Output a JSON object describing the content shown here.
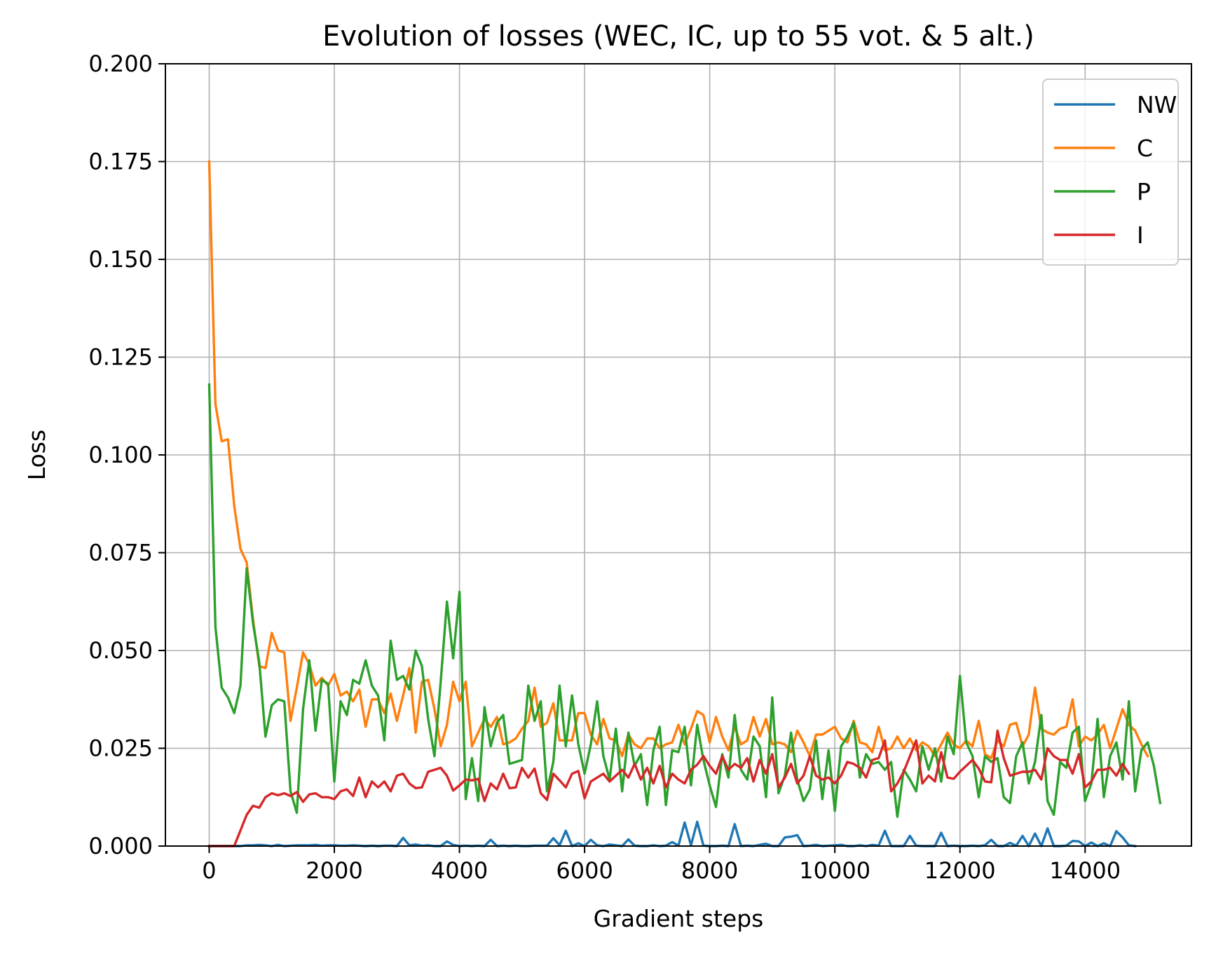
{
  "chart_data": {
    "type": "line",
    "title": "Evolution of losses (WEC, IC, up to 55 vot. & 5 alt.)",
    "xlabel": "Gradient steps",
    "ylabel": "Loss",
    "xlim": [
      -700,
      15700
    ],
    "ylim": [
      0,
      0.2
    ],
    "xticks": [
      0,
      2000,
      4000,
      6000,
      8000,
      10000,
      12000,
      14000
    ],
    "xtick_labels": [
      "0",
      "2000",
      "4000",
      "6000",
      "8000",
      "10000",
      "12000",
      "14000"
    ],
    "yticks": [
      0,
      0.025,
      0.05,
      0.075,
      0.1,
      0.125,
      0.15,
      0.175,
      0.2
    ],
    "ytick_labels": [
      "0.000",
      "0.025",
      "0.050",
      "0.075",
      "0.100",
      "0.125",
      "0.150",
      "0.175",
      "0.200"
    ],
    "grid": true,
    "legend_position": "top-right",
    "x_start": 0,
    "x_step": 100,
    "series": [
      {
        "name": "NW",
        "color": "#1f77b4",
        "values": [
          0.0,
          0.0,
          0.0,
          0.0,
          0.0,
          0.0,
          0.0002,
          0.0002,
          0.0003,
          0.0002,
          0.0,
          0.0003,
          0.0,
          0.0001,
          0.0002,
          0.0002,
          0.0002,
          0.0003,
          0.0001,
          0.0002,
          0.0002,
          0.0001,
          0.0001,
          0.0002,
          0.0001,
          0.0,
          0.0001,
          0.0,
          0.0001,
          0.0001,
          0.0,
          0.0021,
          0.0002,
          0.0004,
          0.0001,
          0.0002,
          0.0,
          0.0,
          0.0012,
          0.0003,
          0.0,
          0.0001,
          0.0,
          0.0001,
          0.0,
          0.0016,
          0.0,
          0.0001,
          0.0,
          0.0001,
          0.0,
          0.0,
          0.0001,
          0.0001,
          0.0001,
          0.002,
          0.0002,
          0.0039,
          0.0,
          0.0007,
          0.0,
          0.0016,
          0.0002,
          0.0,
          0.0004,
          0.0002,
          0.0,
          0.0017,
          0.0001,
          0.0,
          0.0,
          0.0002,
          0.0,
          0.0001,
          0.001,
          0.0001,
          0.006,
          0.0002,
          0.0062,
          0.0001,
          0.0,
          0.0,
          0.0001,
          0.0,
          0.0056,
          0.0,
          0.0001,
          0.0,
          0.0003,
          0.0006,
          0.0,
          0.0,
          0.0022,
          0.0024,
          0.0028,
          0.0,
          0.0001,
          0.0003,
          0.0,
          0.0001,
          0.0002,
          0.0003,
          0.0,
          0.0,
          0.0002,
          0.0,
          0.0003,
          0.0001,
          0.0039,
          0.0,
          0.0,
          0.0,
          0.0026,
          0.0001,
          0.0,
          0.0,
          0.0,
          0.0034,
          0.0,
          0.0001,
          0.0,
          0.0,
          0.0001,
          0.0,
          0.0002,
          0.0016,
          0.0,
          0.0,
          0.0008,
          0.0001,
          0.0026,
          0.0,
          0.0032,
          0.0,
          0.0045,
          0.0,
          0.0,
          0.0001,
          0.0013,
          0.0012,
          0.0,
          0.0009,
          0.0,
          0.0007,
          0.0,
          0.0038,
          0.0022,
          0.0002,
          0.0
        ]
      },
      {
        "name": "C",
        "color": "#ff7f0e",
        "values": [
          0.175,
          0.113,
          0.1035,
          0.104,
          0.087,
          0.076,
          0.0725,
          0.058,
          0.046,
          0.0455,
          0.0545,
          0.05,
          0.0495,
          0.032,
          0.0405,
          0.0495,
          0.0465,
          0.041,
          0.043,
          0.041,
          0.044,
          0.0385,
          0.0395,
          0.037,
          0.04,
          0.0305,
          0.0375,
          0.0375,
          0.034,
          0.039,
          0.032,
          0.0385,
          0.0455,
          0.029,
          0.042,
          0.0425,
          0.035,
          0.0255,
          0.031,
          0.042,
          0.037,
          0.042,
          0.0255,
          0.029,
          0.0325,
          0.0305,
          0.033,
          0.026,
          0.0265,
          0.0275,
          0.03,
          0.032,
          0.0405,
          0.0305,
          0.0315,
          0.0365,
          0.027,
          0.027,
          0.027,
          0.034,
          0.034,
          0.0285,
          0.026,
          0.0325,
          0.0275,
          0.027,
          0.023,
          0.0285,
          0.026,
          0.025,
          0.0275,
          0.0275,
          0.025,
          0.026,
          0.0265,
          0.031,
          0.026,
          0.03,
          0.0345,
          0.0335,
          0.0265,
          0.033,
          0.028,
          0.0245,
          0.0305,
          0.026,
          0.027,
          0.033,
          0.028,
          0.0325,
          0.026,
          0.0265,
          0.026,
          0.024,
          0.0295,
          0.0265,
          0.023,
          0.0285,
          0.0285,
          0.0295,
          0.0305,
          0.0275,
          0.0265,
          0.032,
          0.0265,
          0.026,
          0.024,
          0.0305,
          0.0245,
          0.025,
          0.028,
          0.025,
          0.0275,
          0.0245,
          0.0265,
          0.0255,
          0.023,
          0.026,
          0.029,
          0.026,
          0.025,
          0.027,
          0.0255,
          0.032,
          0.0235,
          0.0225,
          0.027,
          0.0255,
          0.031,
          0.0315,
          0.0255,
          0.0285,
          0.0405,
          0.03,
          0.029,
          0.0285,
          0.03,
          0.0305,
          0.0375,
          0.0255,
          0.028,
          0.027,
          0.0285,
          0.031,
          0.025,
          0.03,
          0.035,
          0.031,
          0.0295,
          0.026,
          0.023
        ]
      },
      {
        "name": "P",
        "color": "#2ca02c",
        "values": [
          0.118,
          0.056,
          0.0405,
          0.038,
          0.034,
          0.041,
          0.071,
          0.057,
          0.047,
          0.028,
          0.036,
          0.0375,
          0.037,
          0.014,
          0.0085,
          0.035,
          0.0475,
          0.0295,
          0.0425,
          0.0415,
          0.0165,
          0.037,
          0.0335,
          0.0425,
          0.0415,
          0.0475,
          0.041,
          0.0385,
          0.027,
          0.0525,
          0.0425,
          0.0435,
          0.04,
          0.05,
          0.046,
          0.0325,
          0.023,
          0.042,
          0.0625,
          0.048,
          0.065,
          0.012,
          0.0225,
          0.0115,
          0.0355,
          0.0255,
          0.0315,
          0.0335,
          0.021,
          0.0215,
          0.022,
          0.041,
          0.032,
          0.037,
          0.014,
          0.0215,
          0.041,
          0.0255,
          0.0385,
          0.026,
          0.0185,
          0.026,
          0.037,
          0.023,
          0.017,
          0.03,
          0.014,
          0.029,
          0.0205,
          0.0235,
          0.0105,
          0.0245,
          0.0305,
          0.0105,
          0.0245,
          0.024,
          0.0305,
          0.0155,
          0.031,
          0.022,
          0.0155,
          0.01,
          0.0235,
          0.0175,
          0.0335,
          0.0195,
          0.017,
          0.028,
          0.0255,
          0.0125,
          0.038,
          0.0135,
          0.018,
          0.029,
          0.017,
          0.0115,
          0.0145,
          0.027,
          0.012,
          0.0245,
          0.009,
          0.0255,
          0.028,
          0.0315,
          0.0175,
          0.0235,
          0.021,
          0.0215,
          0.0195,
          0.0215,
          0.0075,
          0.0195,
          0.017,
          0.014,
          0.0255,
          0.0195,
          0.025,
          0.0165,
          0.028,
          0.0235,
          0.0435,
          0.0265,
          0.023,
          0.0125,
          0.023,
          0.0215,
          0.0225,
          0.0125,
          0.011,
          0.023,
          0.0265,
          0.016,
          0.0215,
          0.0335,
          0.0115,
          0.008,
          0.0215,
          0.02,
          0.029,
          0.0305,
          0.0115,
          0.016,
          0.0325,
          0.0125,
          0.023,
          0.0265,
          0.017,
          0.037,
          0.014,
          0.0245,
          0.0265,
          0.0205,
          0.011
        ]
      },
      {
        "name": "I",
        "color": "#d62728",
        "values": [
          0.0,
          0.0,
          0.0,
          0.0,
          0.0,
          0.004,
          0.008,
          0.0103,
          0.0098,
          0.0125,
          0.0135,
          0.013,
          0.0135,
          0.0128,
          0.0138,
          0.0113,
          0.0132,
          0.0135,
          0.0125,
          0.0125,
          0.012,
          0.014,
          0.0145,
          0.0128,
          0.0175,
          0.0125,
          0.0165,
          0.015,
          0.0165,
          0.014,
          0.018,
          0.0185,
          0.016,
          0.0148,
          0.015,
          0.019,
          0.0195,
          0.02,
          0.018,
          0.0142,
          0.0155,
          0.017,
          0.0168,
          0.0172,
          0.0115,
          0.016,
          0.0145,
          0.0185,
          0.0148,
          0.015,
          0.02,
          0.0175,
          0.0198,
          0.0135,
          0.0118,
          0.0185,
          0.0168,
          0.015,
          0.0185,
          0.0192,
          0.0122,
          0.0165,
          0.0175,
          0.0185,
          0.0165,
          0.018,
          0.0195,
          0.0175,
          0.021,
          0.017,
          0.02,
          0.016,
          0.0205,
          0.015,
          0.0185,
          0.017,
          0.016,
          0.0195,
          0.0208,
          0.023,
          0.0205,
          0.0185,
          0.023,
          0.0195,
          0.021,
          0.02,
          0.0225,
          0.0165,
          0.022,
          0.0185,
          0.0235,
          0.015,
          0.0175,
          0.021,
          0.016,
          0.018,
          0.023,
          0.018,
          0.017,
          0.0175,
          0.016,
          0.018,
          0.0215,
          0.021,
          0.02,
          0.0175,
          0.022,
          0.0225,
          0.027,
          0.014,
          0.016,
          0.019,
          0.023,
          0.027,
          0.016,
          0.018,
          0.0165,
          0.024,
          0.0175,
          0.0172,
          0.019,
          0.0205,
          0.022,
          0.0198,
          0.0165,
          0.0163,
          0.0295,
          0.0225,
          0.018,
          0.0185,
          0.019,
          0.019,
          0.0195,
          0.017,
          0.025,
          0.023,
          0.022,
          0.022,
          0.0185,
          0.0235,
          0.015,
          0.0165,
          0.0195,
          0.0195,
          0.02,
          0.018,
          0.021,
          0.0185
        ]
      }
    ]
  }
}
